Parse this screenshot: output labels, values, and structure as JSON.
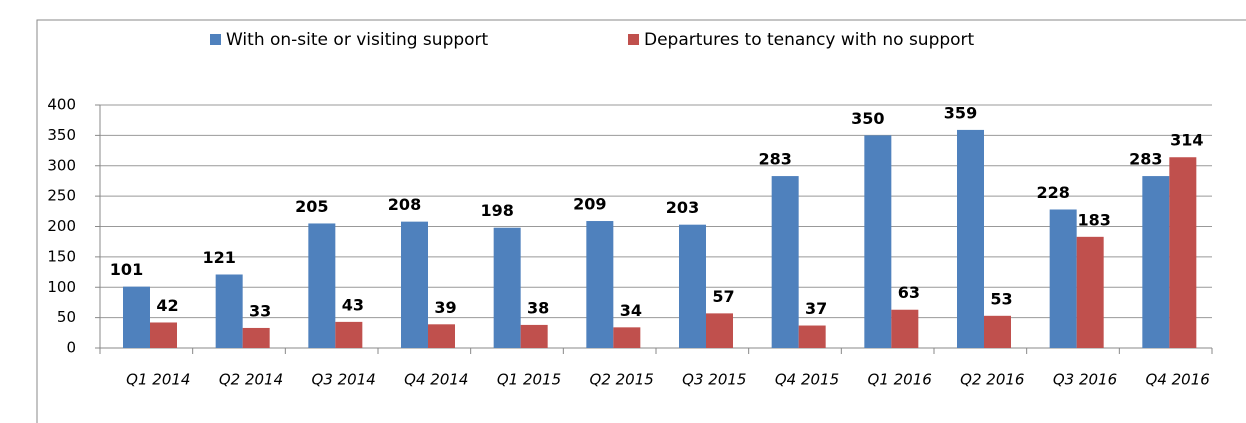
{
  "chart_data": {
    "type": "bar",
    "categories": [
      "Q1 2014",
      "Q2 2014",
      "Q3 2014",
      "Q4 2014",
      "Q1 2015",
      "Q2 2015",
      "Q3 2015",
      "Q4 2015",
      "Q1 2016",
      "Q2 2016",
      "Q3 2016",
      "Q4 2016"
    ],
    "series": [
      {
        "name": "With on-site or visiting support",
        "color": "#4f81bd",
        "values": [
          101,
          121,
          205,
          208,
          198,
          209,
          203,
          283,
          350,
          359,
          228,
          283
        ]
      },
      {
        "name": "Departures to tenancy with no support",
        "color": "#c0504d",
        "values": [
          42,
          33,
          43,
          39,
          38,
          34,
          57,
          37,
          63,
          53,
          183,
          314
        ]
      }
    ],
    "ylim": [
      0,
      400
    ],
    "yticks": [
      0,
      50,
      100,
      150,
      200,
      250,
      300,
      350,
      400
    ],
    "grid": true,
    "legend": "top"
  }
}
